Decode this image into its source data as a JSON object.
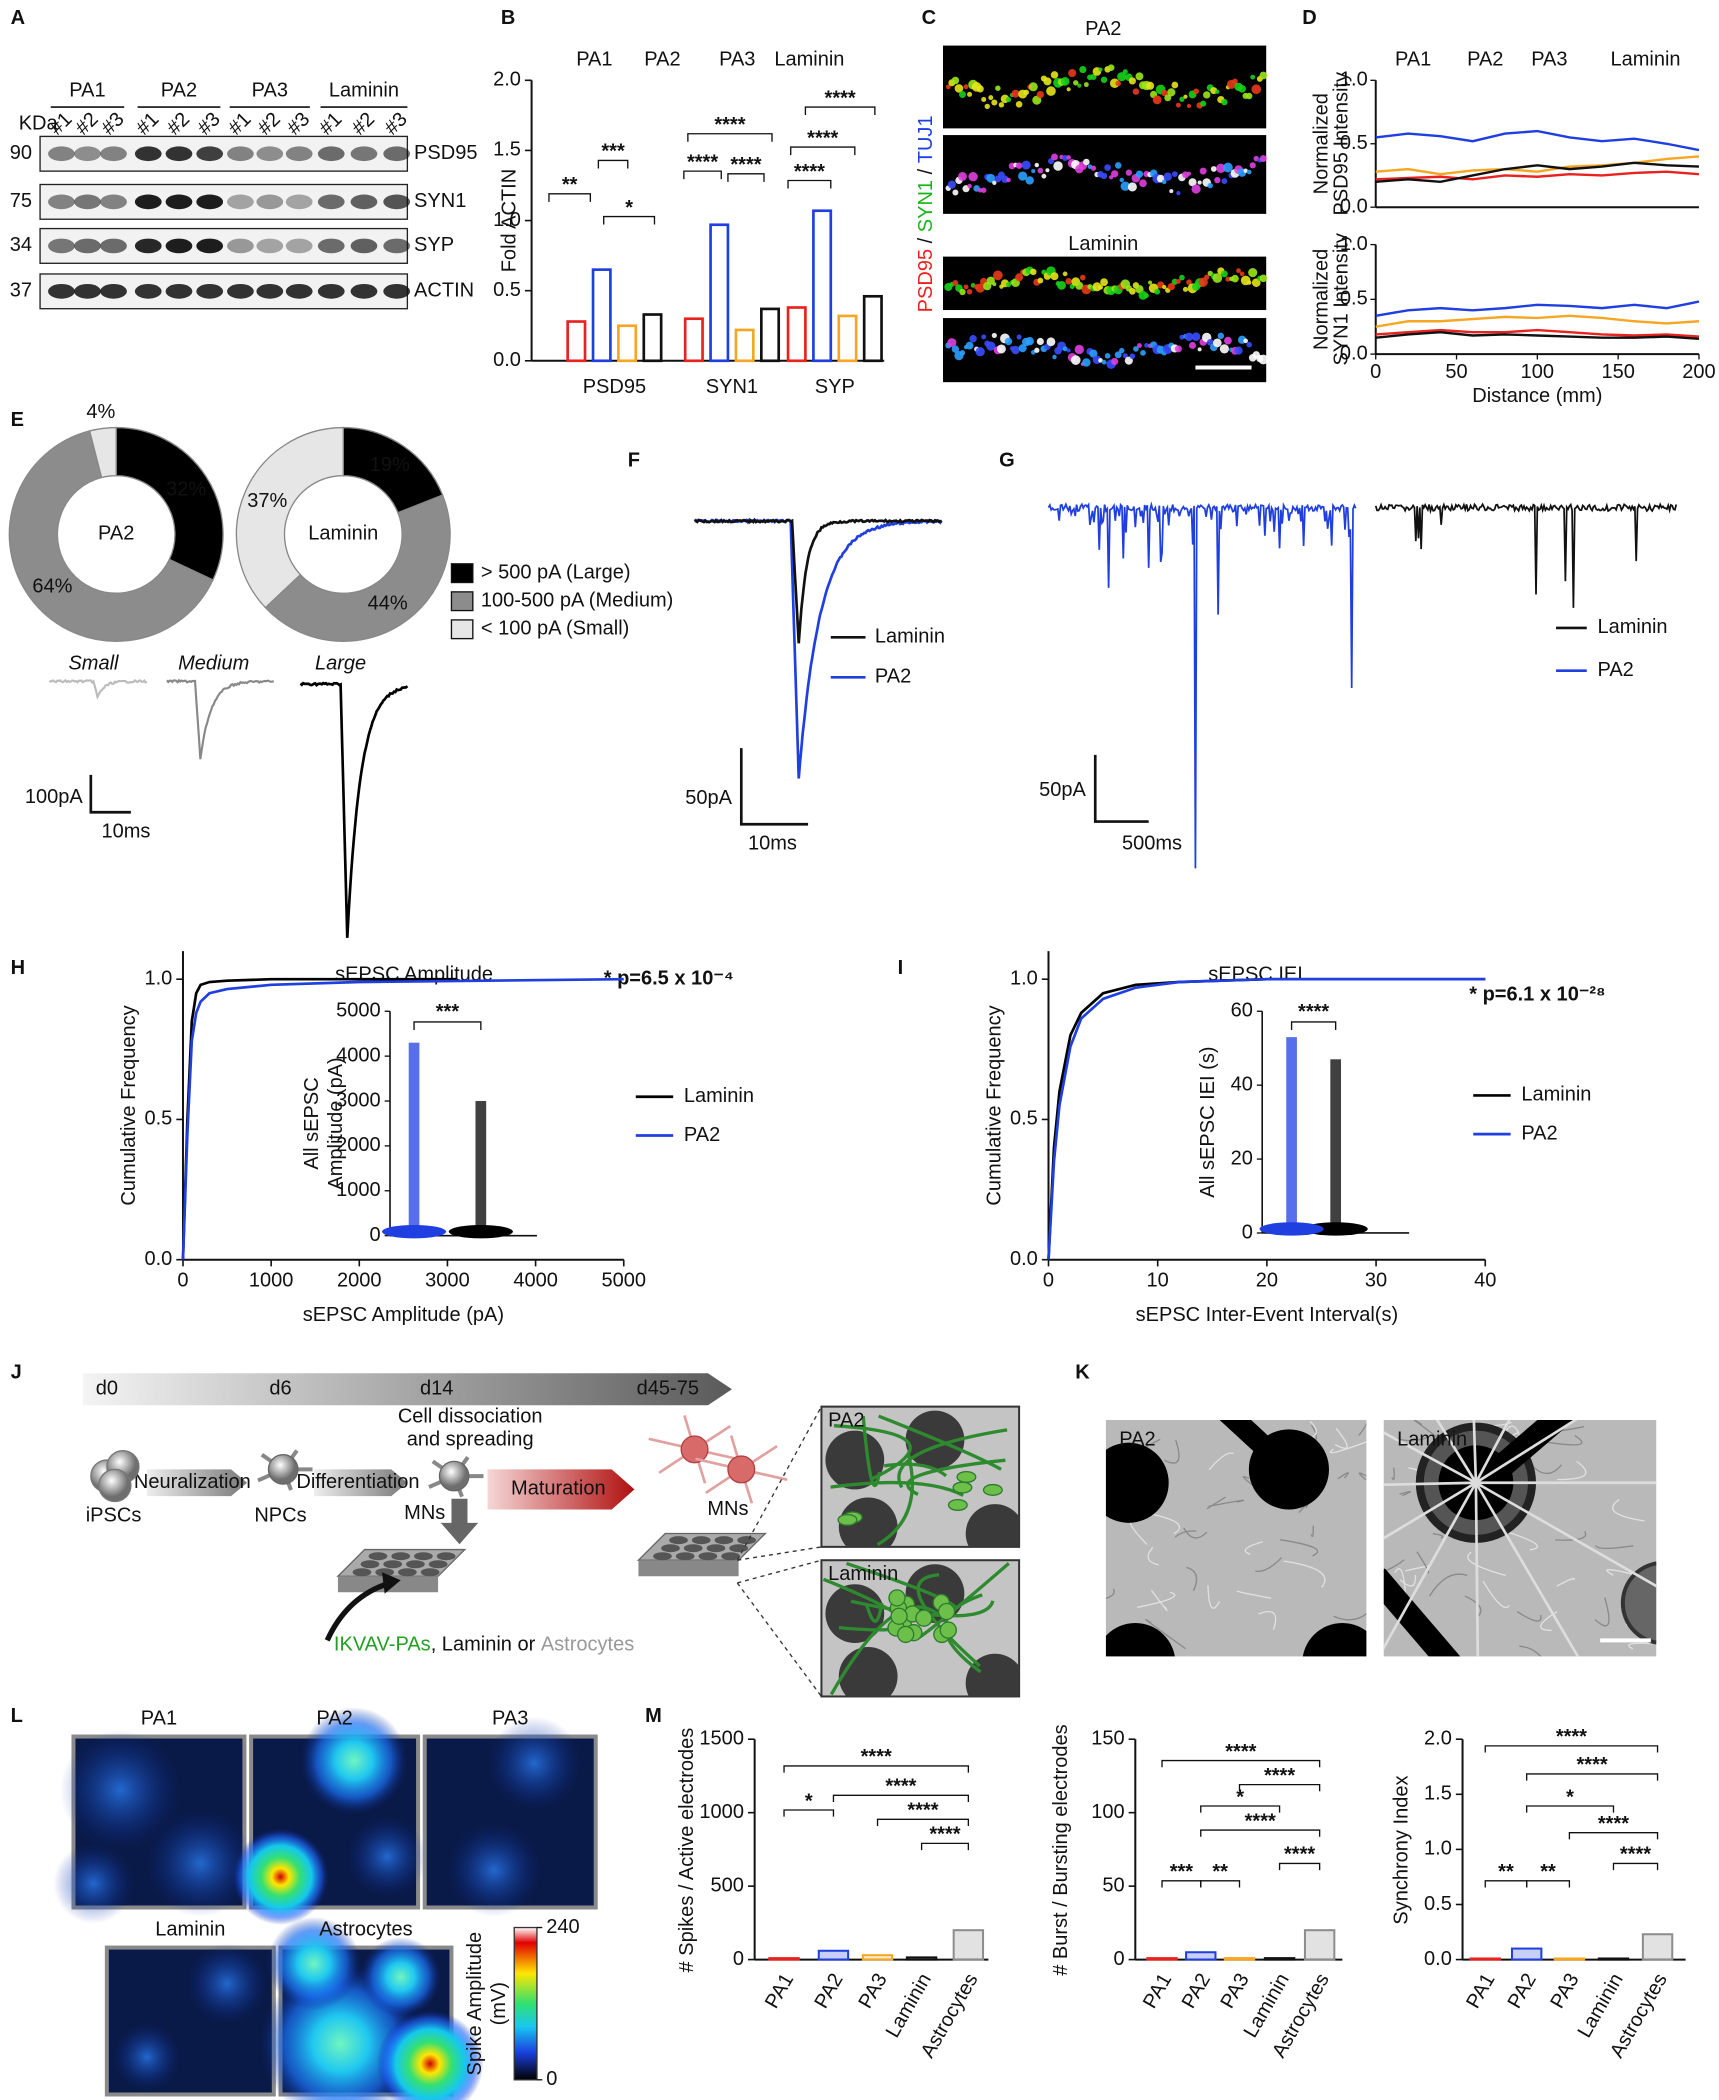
{
  "letters": [
    "A",
    "B",
    "C",
    "D",
    "E",
    "F",
    "G",
    "H",
    "I",
    "J",
    "K",
    "L",
    "M"
  ],
  "blot": {
    "groups": [
      "PA1",
      "PA2",
      "PA3",
      "Laminin"
    ],
    "lanes": [
      "#1",
      "#2",
      "#3"
    ],
    "unit": "KDa",
    "rows": [
      {
        "mw": "90",
        "protein": "PSD95"
      },
      {
        "mw": "75",
        "protein": "SYN1"
      },
      {
        "mw": "34",
        "protein": "SYP"
      },
      {
        "mw": "37",
        "protein": "ACTIN"
      }
    ]
  },
  "imaging": {
    "titles": [
      "PA2",
      "Laminin"
    ],
    "stain": [
      "PSD95",
      "SYN1",
      "TUJ1"
    ],
    "separator": " / "
  },
  "traces_E": {
    "labels": [
      "Small",
      "Medium",
      "Large"
    ],
    "scale": [
      "100pA",
      "10ms"
    ]
  },
  "traces_F": {
    "legend": [
      "Laminin",
      "PA2"
    ],
    "scale": [
      "50pA",
      "10ms"
    ]
  },
  "traces_G": {
    "legend": [
      "Laminin",
      "PA2"
    ],
    "scale": [
      "50pA",
      "500ms"
    ]
  },
  "schematic": {
    "days": [
      "d0",
      "d6",
      "d14",
      "d45-75"
    ],
    "step_note": [
      "Cell dissociation",
      "and spreading"
    ],
    "steps": [
      "Neuralization",
      "Differentiation",
      "Maturation"
    ],
    "cells": [
      "iPSCs",
      "NPCs",
      "MNs",
      "MNs"
    ],
    "substrates": [
      "IKVAV-PAs",
      ", Laminin or ",
      "Astrocytes"
    ],
    "insets": [
      "PA2",
      "Laminin"
    ]
  },
  "brightfield": {
    "labels": [
      "PA2",
      "Laminin"
    ]
  },
  "heatmaps": {
    "labels": [
      "PA1",
      "PA2",
      "PA3",
      "Laminin",
      "Astrocytes"
    ],
    "colorbar": {
      "label": [
        "Spike Amplitude",
        "(mV)"
      ],
      "ticks": [
        0,
        240
      ]
    }
  },
  "chart_data": [
    {
      "type": "bar",
      "ylabel": "Fold ACTIN",
      "categories": [
        "PSD95",
        "SYN1",
        "SYP"
      ],
      "series": [
        {
          "name": "PA1",
          "color": "#e8231f",
          "values": [
            0.28,
            0.3,
            0.38
          ]
        },
        {
          "name": "PA2",
          "color": "#1f3fe0",
          "values": [
            0.65,
            0.97,
            1.07
          ]
        },
        {
          "name": "PA3",
          "color": "#f5a623",
          "values": [
            0.25,
            0.22,
            0.32
          ]
        },
        {
          "name": "Laminin",
          "color": "#111111",
          "values": [
            0.33,
            0.37,
            0.46
          ]
        }
      ],
      "ylim": [
        0,
        2
      ],
      "yticks": [
        {
          "value": 0,
          "label": "0.0"
        },
        0.5,
        {
          "value": 1,
          "label": "1.0"
        },
        1.5,
        {
          "value": 2,
          "label": "2.0"
        }
      ],
      "significance": [
        "**",
        "***",
        "*",
        "****",
        "****",
        "****",
        "****",
        "****",
        "****"
      ]
    },
    {
      "type": "line",
      "x": [
        0,
        20,
        40,
        60,
        80,
        100,
        120,
        140,
        160,
        180,
        200
      ],
      "xlim": [
        0,
        200
      ],
      "series": [
        {
          "name": "PA1",
          "color": "#e8231f"
        },
        {
          "name": "PA2",
          "color": "#1f3fe0"
        },
        {
          "name": "PA3",
          "color": "#f5a623"
        },
        {
          "name": "Laminin",
          "color": "#111111"
        }
      ],
      "subplots": [
        {
          "ylabel": [
            "Normalized",
            "PSD95 Intensity"
          ],
          "ylim": [
            0,
            1
          ],
          "yticks": [
            {
              "value": 0,
              "label": "0.0"
            },
            0.5,
            {
              "value": 1,
              "label": "1.0"
            }
          ],
          "values": [
            [
              0.22,
              0.23,
              0.24,
              0.22,
              0.25,
              0.24,
              0.26,
              0.25,
              0.27,
              0.28,
              0.26
            ],
            [
              0.55,
              0.58,
              0.56,
              0.52,
              0.58,
              0.6,
              0.55,
              0.52,
              0.54,
              0.5,
              0.45
            ],
            [
              0.28,
              0.3,
              0.26,
              0.29,
              0.3,
              0.28,
              0.32,
              0.33,
              0.35,
              0.38,
              0.4
            ],
            [
              0.2,
              0.22,
              0.2,
              0.25,
              0.3,
              0.33,
              0.3,
              0.32,
              0.35,
              0.33,
              0.32
            ]
          ]
        },
        {
          "ylabel": [
            "Normalized",
            "SYN1 Intensity"
          ],
          "ylim": [
            0,
            1
          ],
          "yticks": [
            {
              "value": 0,
              "label": "0.0"
            },
            0.5,
            {
              "value": 1,
              "label": "1.0"
            }
          ],
          "xticks": [
            0,
            50,
            100,
            150,
            200
          ],
          "xlabel": "Distance (mm)",
          "values": [
            [
              0.18,
              0.2,
              0.22,
              0.2,
              0.2,
              0.22,
              0.2,
              0.18,
              0.17,
              0.18,
              0.16
            ],
            [
              0.35,
              0.4,
              0.42,
              0.4,
              0.42,
              0.45,
              0.44,
              0.42,
              0.45,
              0.42,
              0.48
            ],
            [
              0.25,
              0.3,
              0.3,
              0.32,
              0.34,
              0.33,
              0.35,
              0.33,
              0.3,
              0.28,
              0.3
            ],
            [
              0.15,
              0.18,
              0.2,
              0.17,
              0.18,
              0.17,
              0.16,
              0.15,
              0.15,
              0.16,
              0.14
            ]
          ]
        }
      ]
    },
    {
      "type": "pie",
      "categories": [
        "> 500 pA (Large)",
        "100-500 pA (Medium)",
        "< 100 pA (Small)"
      ],
      "colors": [
        "#000000",
        "#8c8c8c",
        "#e6e6e6"
      ],
      "series": [
        {
          "name": "PA2",
          "color": "#1f3fe0",
          "values": [
            32,
            64,
            4
          ],
          "value_labels": [
            "32%",
            "64%",
            "4%"
          ]
        },
        {
          "name": "Laminin",
          "color": "#000000",
          "values": [
            19,
            44,
            37
          ],
          "value_labels": [
            "19%",
            "44%",
            "37%"
          ]
        }
      ]
    },
    {
      "type": "line",
      "title": "sEPSC Amplitude",
      "xlabel": "sEPSC Amplitude (pA)",
      "ylabel": "Cumulative Frequency",
      "xlim": [
        0,
        5000
      ],
      "xticks": [
        0,
        1000,
        2000,
        3000,
        4000,
        5000
      ],
      "ylim": [
        0,
        1.1
      ],
      "yticks": [
        {
          "value": 0,
          "label": "0.0"
        },
        0.5,
        {
          "value": 1,
          "label": "1.0"
        }
      ],
      "annotation": "* p=6.5 x 10⁻⁴",
      "series": [
        {
          "name": "Laminin",
          "color": "#000000",
          "x": [
            0,
            50,
            100,
            150,
            200,
            300,
            500,
            1000,
            2000,
            3100
          ],
          "values": [
            0,
            0.5,
            0.85,
            0.95,
            0.98,
            0.99,
            0.995,
            1,
            1,
            1
          ]
        },
        {
          "name": "PA2",
          "color": "#1f3fe0",
          "x": [
            0,
            50,
            100,
            150,
            200,
            300,
            500,
            1000,
            2000,
            5000
          ],
          "values": [
            0,
            0.45,
            0.78,
            0.88,
            0.92,
            0.95,
            0.965,
            0.98,
            0.99,
            1
          ]
        }
      ],
      "inset": {
        "ylabel": [
          "All sEPSC",
          "Amplitude (pA)"
        ],
        "ylim": [
          0,
          5000
        ],
        "yticks": [
          0,
          1000,
          2000,
          3000,
          4000,
          5000
        ],
        "significance": "***",
        "max": [
          3000,
          4300
        ]
      }
    },
    {
      "type": "line",
      "title": "sEPSC IEI",
      "xlabel": "sEPSC Inter-Event Interval(s)",
      "ylabel": "Cumulative Frequency",
      "xlim": [
        0,
        40
      ],
      "xticks": [
        0,
        10,
        20,
        30,
        40
      ],
      "ylim": [
        0,
        1.1
      ],
      "yticks": [
        {
          "value": 0,
          "label": "0.0"
        },
        0.5,
        {
          "value": 1,
          "label": "1.0"
        }
      ],
      "annotation": "* p=6.1 x 10⁻²⁸",
      "series": [
        {
          "name": "Laminin",
          "color": "#000000",
          "x": [
            0,
            0.5,
            1,
            2,
            3,
            5,
            8,
            12,
            20,
            40
          ],
          "values": [
            0,
            0.4,
            0.6,
            0.8,
            0.88,
            0.95,
            0.98,
            0.99,
            1,
            1
          ]
        },
        {
          "name": "PA2",
          "color": "#1f3fe0",
          "x": [
            0,
            0.5,
            1,
            2,
            3,
            5,
            8,
            12,
            20,
            40
          ],
          "values": [
            0,
            0.35,
            0.55,
            0.76,
            0.86,
            0.93,
            0.97,
            0.99,
            1,
            1
          ]
        }
      ],
      "inset": {
        "ylabel": [
          "All sEPSC IEI (s)"
        ],
        "ylim": [
          0,
          60
        ],
        "yticks": [
          0,
          20,
          40,
          60
        ],
        "significance": "****",
        "max": [
          47,
          53
        ]
      }
    },
    {
      "type": "bar",
      "ylabel": "# Spikes / Active electrodes",
      "categories": [
        "PA1",
        "PA2",
        "PA3",
        "Laminin",
        "Astrocytes"
      ],
      "colors": [
        "#e8231f",
        "#1f3fe0",
        "#f5a623",
        "#111111",
        "#8c8c8c"
      ],
      "values": [
        10,
        60,
        30,
        15,
        200
      ],
      "ylim": [
        0,
        1500
      ],
      "yticks": [
        0,
        500,
        1000,
        1500
      ],
      "significance": [
        "*",
        "****",
        "****",
        "****",
        "****"
      ]
    },
    {
      "type": "bar",
      "ylabel": "# Burst / Bursting electrodes",
      "categories": [
        "PA1",
        "PA2",
        "PA3",
        "Laminin",
        "Astrocytes"
      ],
      "colors": [
        "#e8231f",
        "#1f3fe0",
        "#f5a623",
        "#111111",
        "#8c8c8c"
      ],
      "values": [
        1,
        5,
        1,
        1,
        20
      ],
      "ylim": [
        0,
        150
      ],
      "yticks": [
        0,
        50,
        100,
        150
      ],
      "significance": [
        "****",
        "****",
        "*",
        "****",
        "****",
        "***",
        "**"
      ]
    },
    {
      "type": "bar",
      "ylabel": "Synchrony Index",
      "categories": [
        "PA1",
        "PA2",
        "PA3",
        "Laminin",
        "Astrocytes"
      ],
      "colors": [
        "#e8231f",
        "#1f3fe0",
        "#f5a623",
        "#111111",
        "#8c8c8c"
      ],
      "values": [
        0.01,
        0.1,
        0.01,
        0.01,
        0.23
      ],
      "ylim": [
        0,
        2
      ],
      "yticks": [
        {
          "value": 0,
          "label": "0.0"
        },
        0.5,
        {
          "value": 1,
          "label": "1.0"
        },
        1.5,
        {
          "value": 2,
          "label": "2.0"
        }
      ],
      "significance": [
        "****",
        "****",
        "*",
        "****",
        "****",
        "**",
        "**"
      ]
    }
  ]
}
